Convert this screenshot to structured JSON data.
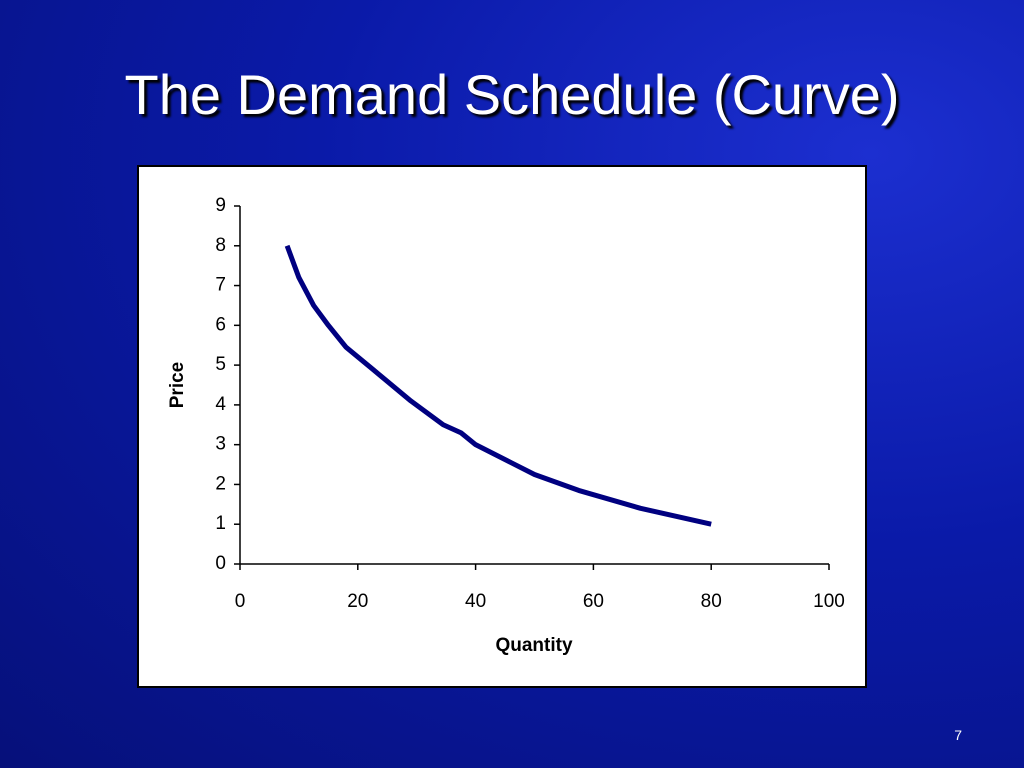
{
  "chart_data": {
    "type": "line",
    "title": "The Demand Schedule (Curve)",
    "x_label": "Quantity",
    "y_label": "Price",
    "x": [
      8,
      10,
      12.5,
      15,
      18,
      22.5,
      29,
      34.5,
      37.5,
      40,
      46,
      50,
      57.5,
      68,
      80
    ],
    "values": [
      8,
      7.2,
      6.5,
      6,
      5.45,
      4.9,
      4.1,
      3.5,
      3.3,
      3,
      2.55,
      2.25,
      1.85,
      1.4,
      1
    ],
    "color": "#000080",
    "xlim": [
      0,
      100
    ],
    "xticks": [
      0,
      20,
      40,
      60,
      80,
      100
    ],
    "ylim": [
      0,
      9
    ],
    "yticks": [
      0,
      1,
      2,
      3,
      4,
      5,
      6,
      7,
      8,
      9
    ],
    "grid": false
  },
  "slide_number": "7"
}
